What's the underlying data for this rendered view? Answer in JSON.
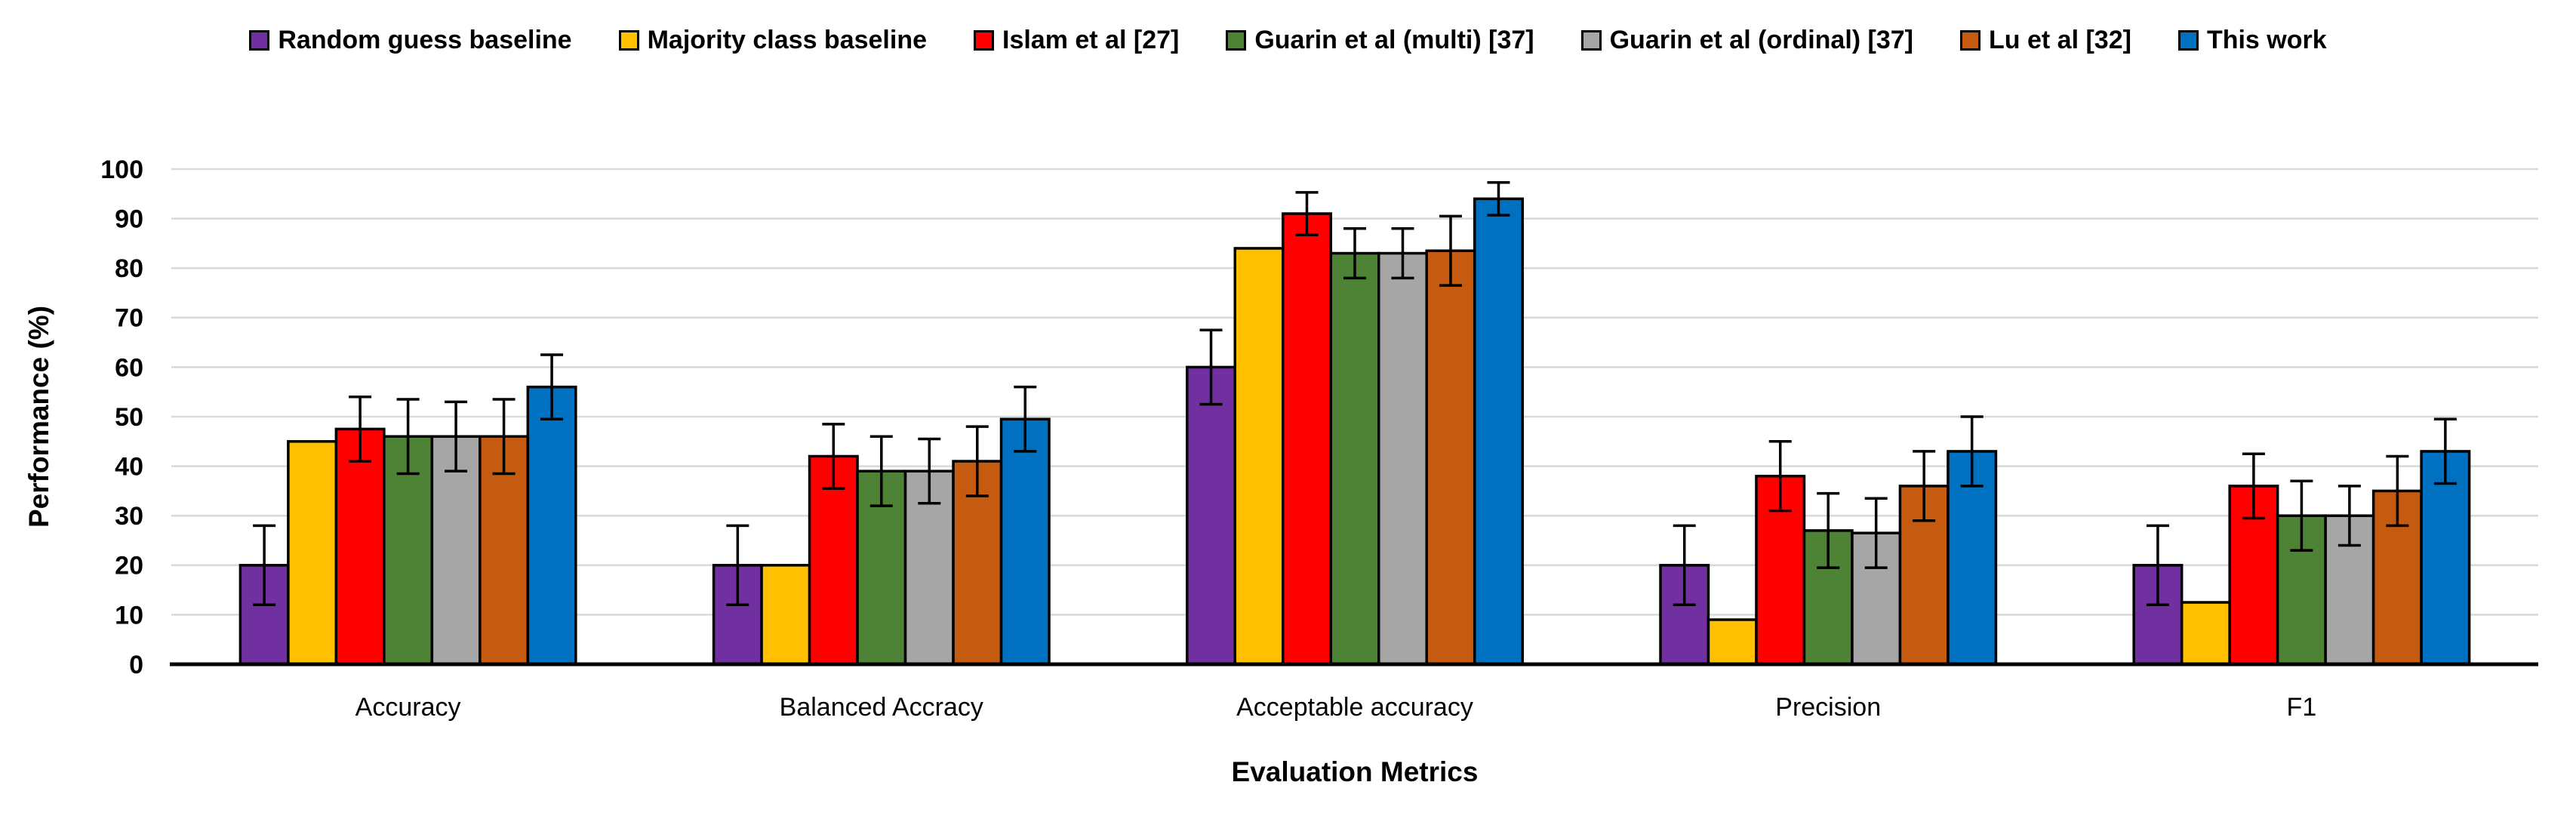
{
  "figure": {
    "ylabel": "Performance (%)",
    "xlabel": "Evaluation Metrics"
  },
  "chart_data": {
    "type": "bar",
    "title": "",
    "xlabel": "Evaluation Metrics",
    "ylabel": "Performance (%)",
    "ylim": [
      0,
      100
    ],
    "yticks": [
      0,
      10,
      20,
      30,
      40,
      50,
      60,
      70,
      80,
      90,
      100
    ],
    "grid": "horizontal",
    "legend_position": "top",
    "error_bars": true,
    "gridline_color": "#D9D9D9",
    "axis_color": "#000000",
    "categories": [
      "Accuracy",
      "Balanced Accracy",
      "Acceptable accuracy",
      "Precision",
      "F1"
    ],
    "series": [
      {
        "name": "Random guess baseline",
        "color": "#7030A0",
        "values": [
          20,
          20,
          60,
          20,
          20
        ],
        "errors": [
          8,
          8,
          7.5,
          8,
          8
        ]
      },
      {
        "name": "Majority class baseline",
        "color": "#FFC000",
        "values": [
          45,
          20,
          84,
          9,
          12.5
        ],
        "errors": null
      },
      {
        "name": "Islam et al [27]",
        "color": "#FF0000",
        "values": [
          47.5,
          42,
          91,
          38,
          36
        ],
        "errors": [
          6.5,
          6.5,
          4.3,
          7,
          6.5
        ]
      },
      {
        "name": "Guarin et al (multi) [37]",
        "color": "#4E8234",
        "values": [
          46,
          39,
          83,
          27,
          30
        ],
        "errors": [
          7.5,
          7,
          5,
          7.5,
          7
        ]
      },
      {
        "name": "Guarin et al (ordinal) [37]",
        "color": "#A6A6A6",
        "values": [
          46,
          39,
          83,
          26.5,
          30
        ],
        "errors": [
          7,
          6.5,
          5,
          7,
          6
        ]
      },
      {
        "name": "Lu et al [32]",
        "color": "#C55A11",
        "values": [
          46,
          41,
          83.5,
          36,
          35
        ],
        "errors": [
          7.5,
          7,
          7,
          7,
          7
        ]
      },
      {
        "name": "This work",
        "color": "#0070C0",
        "values": [
          56,
          49.5,
          94,
          43,
          43
        ],
        "errors": [
          6.5,
          6.5,
          3.3,
          7,
          6.5
        ]
      }
    ]
  }
}
